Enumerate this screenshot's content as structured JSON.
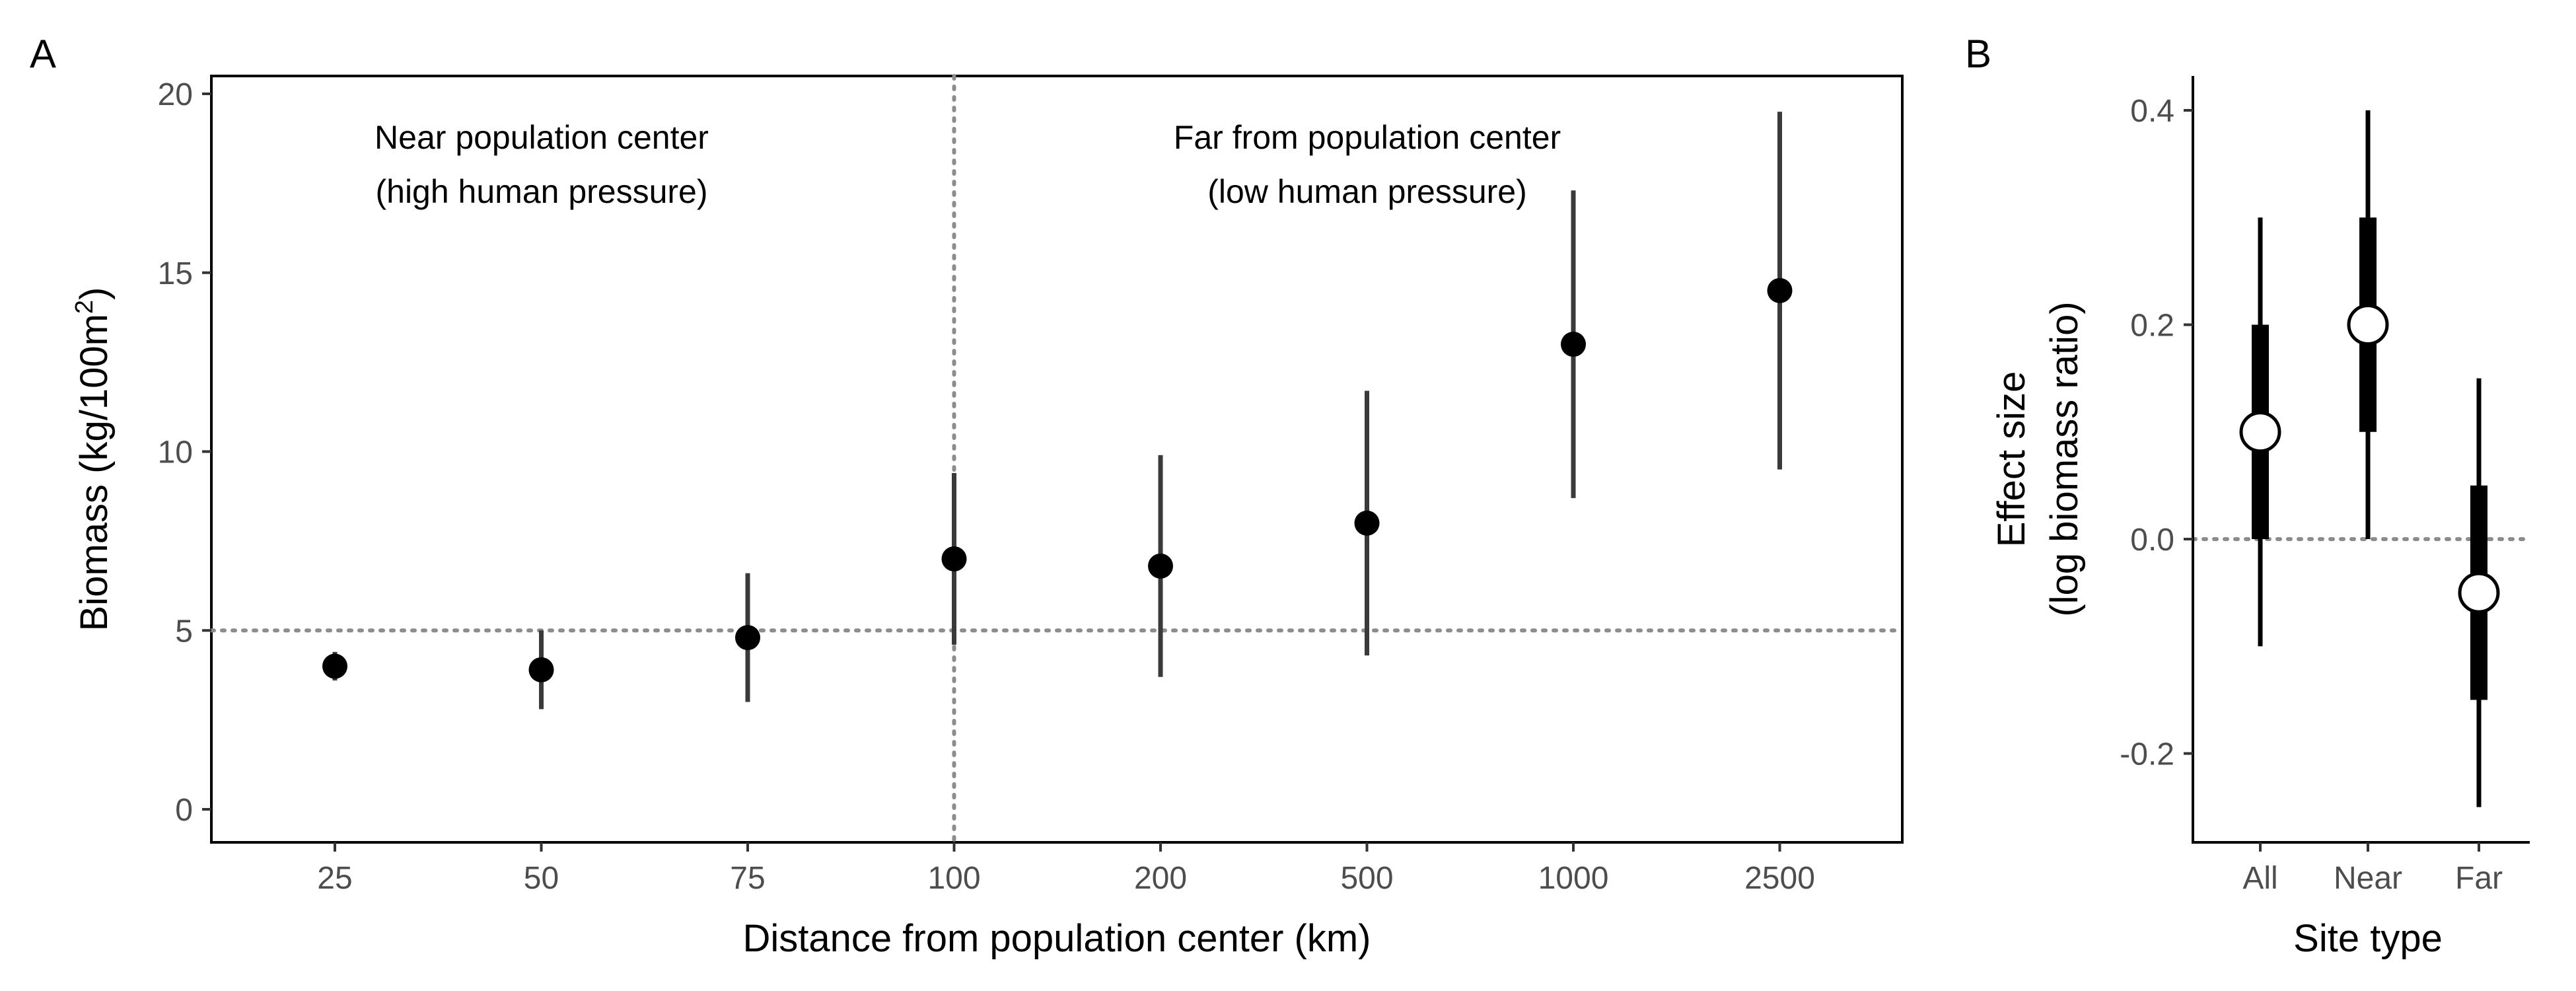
{
  "chart_data": [
    {
      "panel": "A",
      "type": "scatter",
      "xlabel": "Distance from population center (km)",
      "ylabel": "Biomass (kg/100m²)",
      "ylabel_main": "Biomass (kg/100m",
      "ylabel_sup": "2",
      "ylabel_end": ")",
      "ylim": [
        0,
        20
      ],
      "yticks": [
        0,
        5,
        10,
        15,
        20
      ],
      "categories": [
        "25",
        "50",
        "75",
        "100",
        "200",
        "500",
        "1000",
        "2500"
      ],
      "points": [
        {
          "x": "25",
          "y": 4.0,
          "lower": 3.6,
          "upper": 4.4
        },
        {
          "x": "50",
          "y": 3.9,
          "lower": 2.8,
          "upper": 5.0
        },
        {
          "x": "75",
          "y": 4.8,
          "lower": 3.0,
          "upper": 6.6
        },
        {
          "x": "100",
          "y": 7.0,
          "lower": 4.6,
          "upper": 9.4
        },
        {
          "x": "200",
          "y": 6.8,
          "lower": 3.7,
          "upper": 9.9
        },
        {
          "x": "500",
          "y": 8.0,
          "lower": 4.3,
          "upper": 11.7
        },
        {
          "x": "1000",
          "y": 13.0,
          "lower": 8.7,
          "upper": 17.3
        },
        {
          "x": "2500",
          "y": 14.5,
          "lower": 9.5,
          "upper": 19.5
        }
      ],
      "reference_lines": {
        "horizontal_y": 5,
        "vertical_x": "100"
      },
      "annotations": {
        "near_line1": "Near population center",
        "near_line2": "(high human pressure)",
        "far_line1": "Far from population center",
        "far_line2": "(low human pressure)"
      },
      "grid": false
    },
    {
      "panel": "B",
      "type": "scatter",
      "xlabel": "Site type",
      "ylabel": "Effect size (log biomass ratio)",
      "ylabel_line1": "Effect size",
      "ylabel_line2": "(log biomass ratio)",
      "ylim": [
        -0.28,
        0.43
      ],
      "yticks": [
        -0.2,
        0.0,
        0.2,
        0.4
      ],
      "ytick_labels": [
        "-0.2",
        "0.0",
        "0.2",
        "0.4"
      ],
      "categories": [
        "All",
        "Near",
        "Far"
      ],
      "points": [
        {
          "x": "All",
          "y": 0.1,
          "inner_lower": 0.0,
          "inner_upper": 0.2,
          "outer_lower": -0.1,
          "outer_upper": 0.3
        },
        {
          "x": "Near",
          "y": 0.2,
          "inner_lower": 0.1,
          "inner_upper": 0.3,
          "outer_lower": 0.0,
          "outer_upper": 0.4
        },
        {
          "x": "Far",
          "y": -0.05,
          "inner_lower": -0.15,
          "inner_upper": 0.05,
          "outer_lower": -0.25,
          "outer_upper": 0.15
        }
      ],
      "reference_lines": {
        "horizontal_y": 0
      },
      "grid": false
    }
  ],
  "labels": {
    "panel_a": "A",
    "panel_b": "B"
  },
  "colors": {
    "point_fill": "#000000",
    "errorbar": "#3a3a3a",
    "reference_line": "#8c8c8c",
    "open_point_fill": "#ffffff",
    "axis": "#000000"
  }
}
